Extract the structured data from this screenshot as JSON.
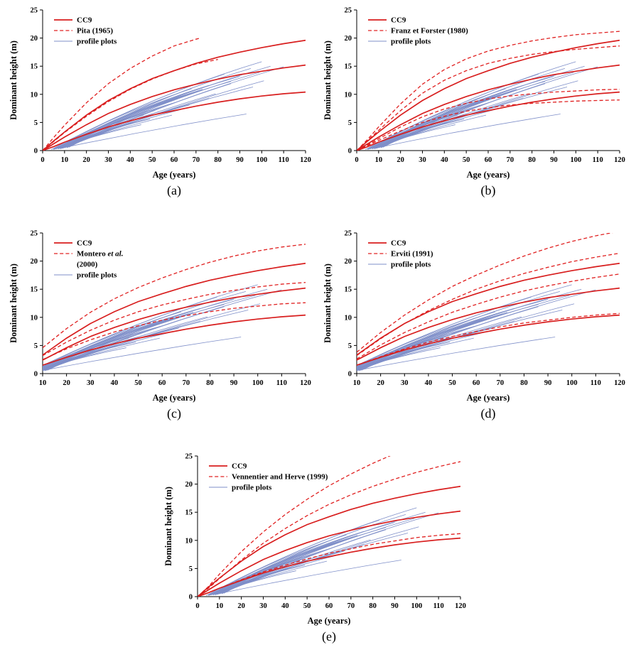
{
  "chart_data": {
    "type": "line",
    "shared": {
      "colors": {
        "cc9": "#d81e1e",
        "model": "#e02020",
        "profile": "#7f8fc9"
      },
      "cc9_series": [
        {
          "x": [
            0,
            5,
            10,
            20,
            30,
            40,
            50,
            60,
            70,
            80,
            90,
            100,
            110,
            120
          ],
          "y": [
            0,
            1.7,
            3.3,
            6.3,
            8.9,
            11.0,
            12.8,
            14.2,
            15.5,
            16.6,
            17.5,
            18.3,
            19.0,
            19.6
          ]
        },
        {
          "x": [
            0,
            5,
            10,
            20,
            30,
            40,
            50,
            60,
            70,
            80,
            90,
            100,
            110,
            120
          ],
          "y": [
            0,
            1.2,
            2.4,
            4.6,
            6.6,
            8.2,
            9.6,
            10.8,
            11.8,
            12.7,
            13.5,
            14.1,
            14.7,
            15.2
          ]
        },
        {
          "x": [
            0,
            5,
            10,
            20,
            30,
            40,
            50,
            60,
            70,
            80,
            90,
            100,
            110,
            120
          ],
          "y": [
            0,
            0.7,
            1.5,
            2.9,
            4.2,
            5.3,
            6.3,
            7.1,
            7.9,
            8.6,
            9.2,
            9.7,
            10.1,
            10.4
          ]
        }
      ],
      "profile_plots": [
        [
          4,
          0.2,
          100,
          15.8,
          2.2
        ],
        [
          5,
          0.3,
          104,
          15.0,
          1.8
        ],
        [
          6,
          0.3,
          95,
          14.6,
          2.0
        ],
        [
          5,
          0.2,
          90,
          13.2,
          1.8
        ],
        [
          7,
          0.4,
          99,
          13.9,
          1.6
        ],
        [
          6,
          0.3,
          86,
          12.3,
          1.6
        ],
        [
          8,
          0.4,
          110,
          14.9,
          1.4
        ],
        [
          6,
          0.3,
          76,
          11.6,
          1.5
        ],
        [
          9,
          0.5,
          81,
          12.9,
          1.5
        ],
        [
          5,
          0.3,
          71,
          10.6,
          1.4
        ],
        [
          7,
          0.4,
          96,
          11.3,
          1.1
        ],
        [
          10,
          0.5,
          101,
          12.4,
          1.1
        ],
        [
          6,
          0.3,
          66,
          9.9,
          1.3
        ],
        [
          8,
          0.4,
          73,
          10.9,
          1.2
        ],
        [
          5,
          0.2,
          61,
          8.6,
          1.1
        ],
        [
          8,
          0.4,
          93,
          6.5,
          0.4
        ],
        [
          7,
          0.3,
          56,
          7.9,
          1.0
        ],
        [
          6,
          0.3,
          51,
          7.1,
          0.9
        ],
        [
          10,
          0.5,
          59,
          8.9,
          1.0
        ],
        [
          8,
          0.4,
          46,
          6.3,
          0.7
        ],
        [
          5,
          0.2,
          49,
          5.6,
          0.7
        ],
        [
          11,
          0.6,
          63,
          9.6,
          1.0
        ],
        [
          6,
          0.3,
          43,
          5.1,
          0.6
        ],
        [
          9,
          0.4,
          53,
          6.9,
          0.8
        ],
        [
          7,
          0.3,
          41,
          4.9,
          0.6
        ],
        [
          12,
          0.6,
          69,
          10.3,
          1.0
        ],
        [
          5,
          0.2,
          45,
          4.6,
          0.5
        ],
        [
          8,
          0.4,
          67,
          8.1,
          0.8
        ],
        [
          10,
          0.5,
          76,
          9.3,
          0.8
        ],
        [
          6,
          0.3,
          59,
          6.3,
          0.6
        ],
        [
          7,
          0.3,
          63,
          7.3,
          0.7
        ],
        [
          9,
          0.4,
          71,
          8.7,
          0.8
        ],
        [
          11,
          0.5,
          86,
          11.9,
          1.1
        ],
        [
          8,
          0.3,
          79,
          10.1,
          0.9
        ],
        [
          4,
          0.2,
          68,
          11.0,
          1.3
        ],
        [
          5,
          0.2,
          83,
          13.6,
          1.7
        ]
      ]
    },
    "panels": [
      {
        "id": "a",
        "caption": "(a)",
        "xlabel": "Age (years)",
        "ylabel": "Dominant height (m)",
        "xmin": 0,
        "xmax": 120,
        "ymin": 0,
        "ymax": 25,
        "xticks": [
          0,
          10,
          20,
          30,
          40,
          50,
          60,
          70,
          80,
          90,
          100,
          110,
          120
        ],
        "yticks": [
          0,
          5,
          10,
          15,
          20,
          25
        ],
        "legend": [
          {
            "label": "CC9",
            "style": "solid"
          },
          {
            "label": "Pita (1965)",
            "style": "dashed"
          },
          {
            "label": "profile plots",
            "style": "profile"
          }
        ],
        "model_series": [
          {
            "x": [
              0,
              5,
              10,
              20,
              30,
              40,
              50,
              60,
              70,
              72
            ],
            "y": [
              0,
              2.3,
              4.5,
              8.5,
              11.9,
              14.6,
              16.8,
              18.6,
              19.8,
              20.0
            ]
          },
          {
            "x": [
              0,
              5,
              10,
              20,
              30,
              40,
              50,
              60,
              70,
              80
            ],
            "y": [
              0,
              1.6,
              3.2,
              6.1,
              8.7,
              10.9,
              12.7,
              14.2,
              15.4,
              16.2
            ]
          }
        ]
      },
      {
        "id": "b",
        "caption": "(b)",
        "xlabel": "Age (years)",
        "ylabel": "Dominant height (m)",
        "xmin": 0,
        "xmax": 120,
        "ymin": 0,
        "ymax": 25,
        "xticks": [
          0,
          10,
          20,
          30,
          40,
          50,
          60,
          70,
          80,
          90,
          100,
          110,
          120
        ],
        "yticks": [
          0,
          5,
          10,
          15,
          20,
          25
        ],
        "legend": [
          {
            "label": "CC9",
            "style": "solid"
          },
          {
            "label": "Franz et Forster (1980)",
            "style": "dashed"
          },
          {
            "label": "profile plots",
            "style": "profile"
          }
        ],
        "model_series": [
          {
            "x": [
              0,
              5,
              10,
              20,
              30,
              40,
              50,
              60,
              70,
              80,
              90,
              100,
              110,
              120
            ],
            "y": [
              0,
              2.0,
              4.2,
              8.3,
              11.8,
              14.4,
              16.3,
              17.7,
              18.7,
              19.5,
              20.1,
              20.6,
              20.9,
              21.2
            ]
          },
          {
            "x": [
              0,
              5,
              10,
              20,
              30,
              40,
              50,
              60,
              70,
              80,
              90,
              100,
              110,
              120
            ],
            "y": [
              0,
              1.8,
              3.6,
              7.1,
              10.2,
              12.5,
              14.2,
              15.5,
              16.4,
              17.1,
              17.6,
              18.0,
              18.3,
              18.6
            ]
          },
          {
            "x": [
              0,
              5,
              10,
              20,
              30,
              40,
              50,
              60,
              70,
              80,
              90,
              100,
              110,
              120
            ],
            "y": [
              0,
              1.0,
              2.1,
              4.2,
              6.0,
              7.4,
              8.4,
              9.2,
              9.7,
              10.1,
              10.4,
              10.6,
              10.8,
              10.9
            ]
          },
          {
            "x": [
              0,
              5,
              10,
              20,
              30,
              40,
              50,
              60,
              70,
              80,
              90,
              100,
              110,
              120
            ],
            "y": [
              0,
              0.9,
              1.8,
              3.5,
              5.0,
              6.1,
              7.0,
              7.6,
              8.1,
              8.4,
              8.6,
              8.8,
              8.9,
              9.0
            ]
          }
        ]
      },
      {
        "id": "c",
        "caption": "(c)",
        "xlabel": "Age (years)",
        "ylabel": "Dominant height (m)",
        "xmin": 10,
        "xmax": 120,
        "ymin": 0,
        "ymax": 25,
        "xticks": [
          10,
          20,
          30,
          40,
          50,
          60,
          70,
          80,
          90,
          100,
          110,
          120
        ],
        "yticks": [
          0,
          5,
          10,
          15,
          20,
          25
        ],
        "legend": [
          {
            "label": "CC9",
            "style": "solid"
          },
          {
            "label": "Montero et al.",
            "label2": "(2000)",
            "style": "dashed"
          },
          {
            "label": "profile plots",
            "style": "profile"
          }
        ],
        "model_series": [
          {
            "x": [
              10,
              20,
              30,
              40,
              50,
              60,
              70,
              80,
              90,
              100,
              110,
              120
            ],
            "y": [
              4.6,
              8.0,
              10.9,
              13.3,
              15.3,
              17.0,
              18.5,
              19.8,
              20.9,
              21.8,
              22.5,
              23.0
            ]
          },
          {
            "x": [
              10,
              20,
              30,
              40,
              50,
              60,
              70,
              80,
              90,
              100,
              110,
              120
            ],
            "y": [
              3.2,
              5.6,
              7.7,
              9.5,
              11.0,
              12.2,
              13.2,
              14.1,
              14.8,
              15.4,
              15.9,
              16.2
            ]
          },
          {
            "x": [
              10,
              20,
              30,
              40,
              50,
              60,
              70,
              80,
              90,
              100,
              110,
              120
            ],
            "y": [
              2.5,
              4.4,
              6.0,
              7.4,
              8.5,
              9.5,
              10.3,
              11.0,
              11.6,
              12.0,
              12.4,
              12.6
            ]
          }
        ]
      },
      {
        "id": "d",
        "caption": "(d)",
        "xlabel": "Age (years)",
        "ylabel": "Dominant height (m)",
        "xmin": 10,
        "xmax": 120,
        "ymin": 0,
        "ymax": 25,
        "xticks": [
          10,
          20,
          30,
          40,
          50,
          60,
          70,
          80,
          90,
          100,
          110,
          120
        ],
        "yticks": [
          0,
          5,
          10,
          15,
          20,
          25
        ],
        "legend": [
          {
            "label": "CC9",
            "style": "solid"
          },
          {
            "label": "Erviti (1991)",
            "style": "dashed"
          },
          {
            "label": "profile plots",
            "style": "profile"
          }
        ],
        "model_series": [
          {
            "x": [
              10,
              20,
              30,
              40,
              50,
              60,
              70,
              80,
              90,
              100,
              110,
              120
            ],
            "y": [
              3.8,
              7.3,
              10.4,
              13.1,
              15.5,
              17.5,
              19.3,
              20.9,
              22.3,
              23.5,
              24.5,
              25.3
            ]
          },
          {
            "x": [
              10,
              20,
              30,
              40,
              50,
              60,
              70,
              80,
              90,
              100,
              110,
              120
            ],
            "y": [
              3.2,
              6.2,
              8.9,
              11.2,
              13.2,
              15.0,
              16.5,
              17.8,
              18.9,
              19.9,
              20.7,
              21.4
            ]
          },
          {
            "x": [
              10,
              20,
              30,
              40,
              50,
              60,
              70,
              80,
              90,
              100,
              110,
              120
            ],
            "y": [
              2.6,
              5.1,
              7.3,
              9.2,
              10.9,
              12.3,
              13.6,
              14.7,
              15.6,
              16.4,
              17.1,
              17.7
            ]
          },
          {
            "x": [
              10,
              20,
              30,
              40,
              50,
              60,
              70,
              80,
              90,
              100,
              110,
              120
            ],
            "y": [
              1.5,
              3.0,
              4.4,
              5.6,
              6.6,
              7.5,
              8.3,
              9.0,
              9.5,
              10.0,
              10.4,
              10.7
            ]
          }
        ]
      },
      {
        "id": "e",
        "caption": "(e)",
        "xlabel": "Age (years)",
        "ylabel": "Dominant height (m)",
        "xmin": 0,
        "xmax": 120,
        "ymin": 0,
        "ymax": 25,
        "xticks": [
          0,
          10,
          20,
          30,
          40,
          50,
          60,
          70,
          80,
          90,
          100,
          110,
          120
        ],
        "yticks": [
          0,
          5,
          10,
          15,
          20,
          25
        ],
        "legend": [
          {
            "label": "CC9",
            "style": "solid"
          },
          {
            "label": "Vennentier and Herve (1999)",
            "style": "dashed"
          },
          {
            "label": "profile plots",
            "style": "profile"
          }
        ],
        "model_series": [
          {
            "x": [
              0,
              5,
              10,
              20,
              30,
              40,
              50,
              60,
              70,
              80,
              90
            ],
            "y": [
              0,
              1.8,
              4.0,
              8.0,
              11.5,
              14.6,
              17.3,
              19.7,
              21.8,
              23.7,
              25.4
            ]
          },
          {
            "x": [
              0,
              5,
              10,
              20,
              30,
              40,
              50,
              60,
              70,
              80,
              90,
              100,
              110,
              120
            ],
            "y": [
              0,
              1.5,
              3.2,
              6.5,
              9.5,
              12.1,
              14.4,
              16.4,
              18.1,
              19.6,
              20.9,
              22.1,
              23.1,
              24.0
            ]
          },
          {
            "x": [
              0,
              5,
              10,
              20,
              30,
              40,
              50,
              60,
              70,
              80,
              90,
              100,
              110,
              120
            ],
            "y": [
              0,
              0.7,
              1.5,
              3.0,
              4.4,
              5.6,
              6.7,
              7.7,
              8.5,
              9.3,
              9.9,
              10.5,
              10.9,
              11.2
            ]
          }
        ]
      }
    ]
  }
}
